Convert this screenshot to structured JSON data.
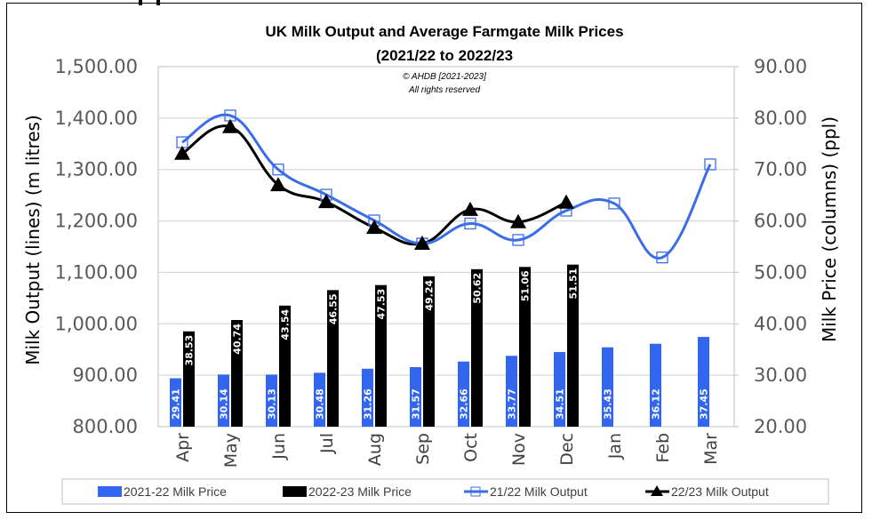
{
  "chart_data": {
    "type": "bar+line",
    "title": "UK Milk Output and Average Farmgate Milk Prices",
    "subtitle": "(2021/22 to 2022/23",
    "annotations": [
      "© AHDB [2021-2023]",
      "All rights reserved"
    ],
    "categories": [
      "Apr",
      "May",
      "Jun",
      "Jul",
      "Aug",
      "Sep",
      "Oct",
      "Nov",
      "Dec",
      "Jan",
      "Feb",
      "Mar"
    ],
    "y_left": {
      "label": "Milk Output (lines) (m litres)",
      "range": [
        800,
        1500
      ],
      "ticks": [
        "800.00",
        "900.00",
        "1,000.00",
        "1,100.00",
        "1,200.00",
        "1,300.00",
        "1,400.00",
        "1,500.00"
      ]
    },
    "y_right": {
      "label": "Milk Price (columns) (ppl)",
      "range": [
        20,
        90
      ],
      "ticks": [
        "20.00",
        "30.00",
        "40.00",
        "50.00",
        "60.00",
        "70.00",
        "80.00",
        "90.00"
      ]
    },
    "grid": true,
    "legend_position": "bottom",
    "bar_series": [
      {
        "name": "2021-22 Milk Price",
        "color": "#3366ee",
        "axis": "right",
        "values": [
          29.41,
          30.14,
          30.13,
          30.48,
          31.26,
          31.57,
          32.66,
          33.77,
          34.51,
          35.43,
          36.12,
          37.45
        ],
        "labels": [
          "29.41",
          "30.14",
          "30.13",
          "30.48",
          "31.26",
          "31.57",
          "32.66",
          "33.77",
          "34.51",
          "35.43",
          "36.12",
          "37.45"
        ]
      },
      {
        "name": "2022-23 Milk Price",
        "color": "#000000",
        "axis": "right",
        "values": [
          38.53,
          40.74,
          43.54,
          46.55,
          47.53,
          49.24,
          50.62,
          51.06,
          51.51,
          null,
          null,
          null
        ],
        "labels": [
          "38.53",
          "40.74",
          "43.54",
          "46.55",
          "47.53",
          "49.24",
          "50.62",
          "51.06",
          "51.51",
          "",
          "",
          ""
        ]
      }
    ],
    "line_series": [
      {
        "name": "21/22 Milk Output",
        "color": "#3b6ee6",
        "marker": "open-square",
        "axis": "left",
        "values": [
          1353,
          1405,
          1300,
          1251,
          1201,
          1156,
          1195,
          1163,
          1220,
          1234,
          1129,
          1310
        ]
      },
      {
        "name": "22/23 Milk Output",
        "color": "#000000",
        "marker": "triangle",
        "axis": "left",
        "values": [
          1331,
          1383,
          1270,
          1237,
          1187,
          1156,
          1222,
          1198,
          1236,
          null,
          null,
          null
        ]
      }
    ]
  }
}
